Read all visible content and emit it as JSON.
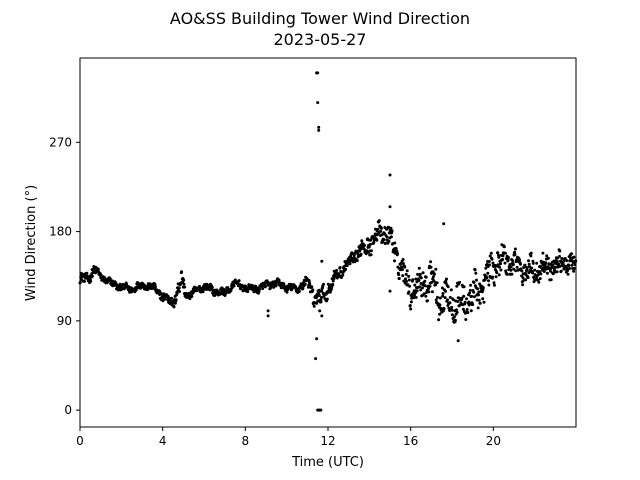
{
  "chart_data": {
    "type": "scatter",
    "title": "AO&SS Building Tower Wind Direction",
    "subtitle": "2023-05-27",
    "xlabel": "Time (UTC)",
    "ylabel": "Wind Direction (°)",
    "xlim": [
      0,
      24
    ],
    "ylim": [
      -17,
      355
    ],
    "xticks": [
      0,
      4,
      8,
      12,
      16,
      20
    ],
    "xtick_labels": [
      "0",
      "4",
      "8",
      "12",
      "16",
      "20"
    ],
    "yticks": [
      0,
      90,
      180,
      270
    ],
    "ytick_labels": [
      "0",
      "90",
      "180",
      "270"
    ],
    "grid": false,
    "marker_color": "#000000",
    "profile": [
      [
        0.0,
        132,
        4
      ],
      [
        0.4,
        133,
        4
      ],
      [
        0.7,
        142,
        4
      ],
      [
        1.0,
        135,
        3
      ],
      [
        1.5,
        128,
        3
      ],
      [
        2.0,
        124,
        3
      ],
      [
        2.5,
        122,
        3
      ],
      [
        3.0,
        126,
        3
      ],
      [
        3.5,
        124,
        3
      ],
      [
        4.0,
        115,
        4
      ],
      [
        4.5,
        108,
        4
      ],
      [
        4.9,
        130,
        8
      ],
      [
        5.2,
        115,
        3
      ],
      [
        6.0,
        125,
        3
      ],
      [
        6.5,
        120,
        3
      ],
      [
        7.0,
        118,
        3
      ],
      [
        7.5,
        128,
        3
      ],
      [
        8.0,
        123,
        3
      ],
      [
        8.5,
        122,
        3
      ],
      [
        9.0,
        126,
        3
      ],
      [
        9.5,
        128,
        3
      ],
      [
        10.0,
        124,
        3
      ],
      [
        10.5,
        122,
        3
      ],
      [
        11.0,
        130,
        4
      ],
      [
        11.3,
        115,
        8
      ],
      [
        11.6,
        112,
        8
      ],
      [
        12.0,
        122,
        6
      ],
      [
        12.5,
        138,
        5
      ],
      [
        13.0,
        148,
        5
      ],
      [
        13.5,
        160,
        7
      ],
      [
        14.0,
        168,
        8
      ],
      [
        14.5,
        180,
        8
      ],
      [
        15.0,
        175,
        10
      ],
      [
        15.5,
        145,
        10
      ],
      [
        16.0,
        122,
        12
      ],
      [
        16.5,
        128,
        12
      ],
      [
        17.0,
        132,
        14
      ],
      [
        17.5,
        110,
        16
      ],
      [
        18.0,
        112,
        16
      ],
      [
        18.5,
        108,
        14
      ],
      [
        19.0,
        115,
        14
      ],
      [
        19.5,
        125,
        14
      ],
      [
        20.0,
        145,
        12
      ],
      [
        20.5,
        152,
        12
      ],
      [
        21.0,
        148,
        12
      ],
      [
        21.5,
        140,
        10
      ],
      [
        22.0,
        142,
        10
      ],
      [
        22.5,
        144,
        10
      ],
      [
        23.0,
        146,
        9
      ],
      [
        23.5,
        148,
        8
      ],
      [
        24.0,
        145,
        8
      ]
    ],
    "outliers": [
      [
        11.45,
        340
      ],
      [
        11.5,
        340
      ],
      [
        11.5,
        310
      ],
      [
        11.55,
        285
      ],
      [
        11.55,
        282
      ],
      [
        11.45,
        72
      ],
      [
        11.4,
        52
      ],
      [
        11.5,
        0
      ],
      [
        11.55,
        0
      ],
      [
        11.6,
        0
      ],
      [
        11.65,
        0
      ],
      [
        11.7,
        150
      ],
      [
        15.0,
        237
      ],
      [
        15.0,
        205
      ],
      [
        15.0,
        120
      ],
      [
        17.6,
        188
      ],
      [
        18.3,
        70
      ],
      [
        9.1,
        95
      ],
      [
        9.1,
        100
      ],
      [
        11.6,
        100
      ],
      [
        11.7,
        95
      ]
    ]
  }
}
